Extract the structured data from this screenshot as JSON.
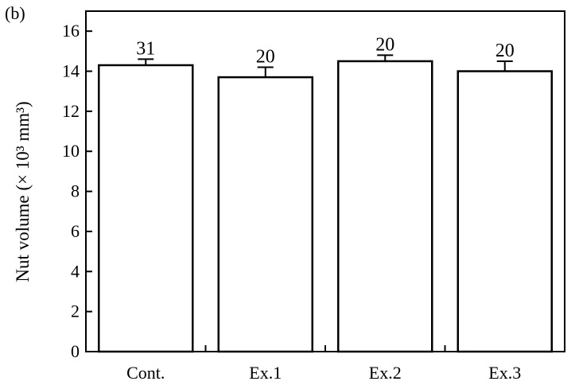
{
  "panel_label": "(b)",
  "chart_data": {
    "type": "bar",
    "categories": [
      "Cont.",
      "Ex.1",
      "Ex.2",
      "Ex.3"
    ],
    "values": [
      14.3,
      13.7,
      14.5,
      14.0
    ],
    "errors": [
      0.3,
      0.5,
      0.3,
      0.5
    ],
    "data_labels": [
      "31",
      "20",
      "20",
      "20"
    ],
    "title": "",
    "xlabel": "",
    "ylabel": "Nut volume (× 10³ mm³)",
    "ylim": [
      0,
      17
    ],
    "yticks": [
      0,
      2,
      4,
      6,
      8,
      10,
      12,
      14,
      16
    ],
    "grid": false,
    "colors": {
      "bar_fill": "#ffffff",
      "bar_stroke": "#000000",
      "axis": "#000000"
    }
  }
}
